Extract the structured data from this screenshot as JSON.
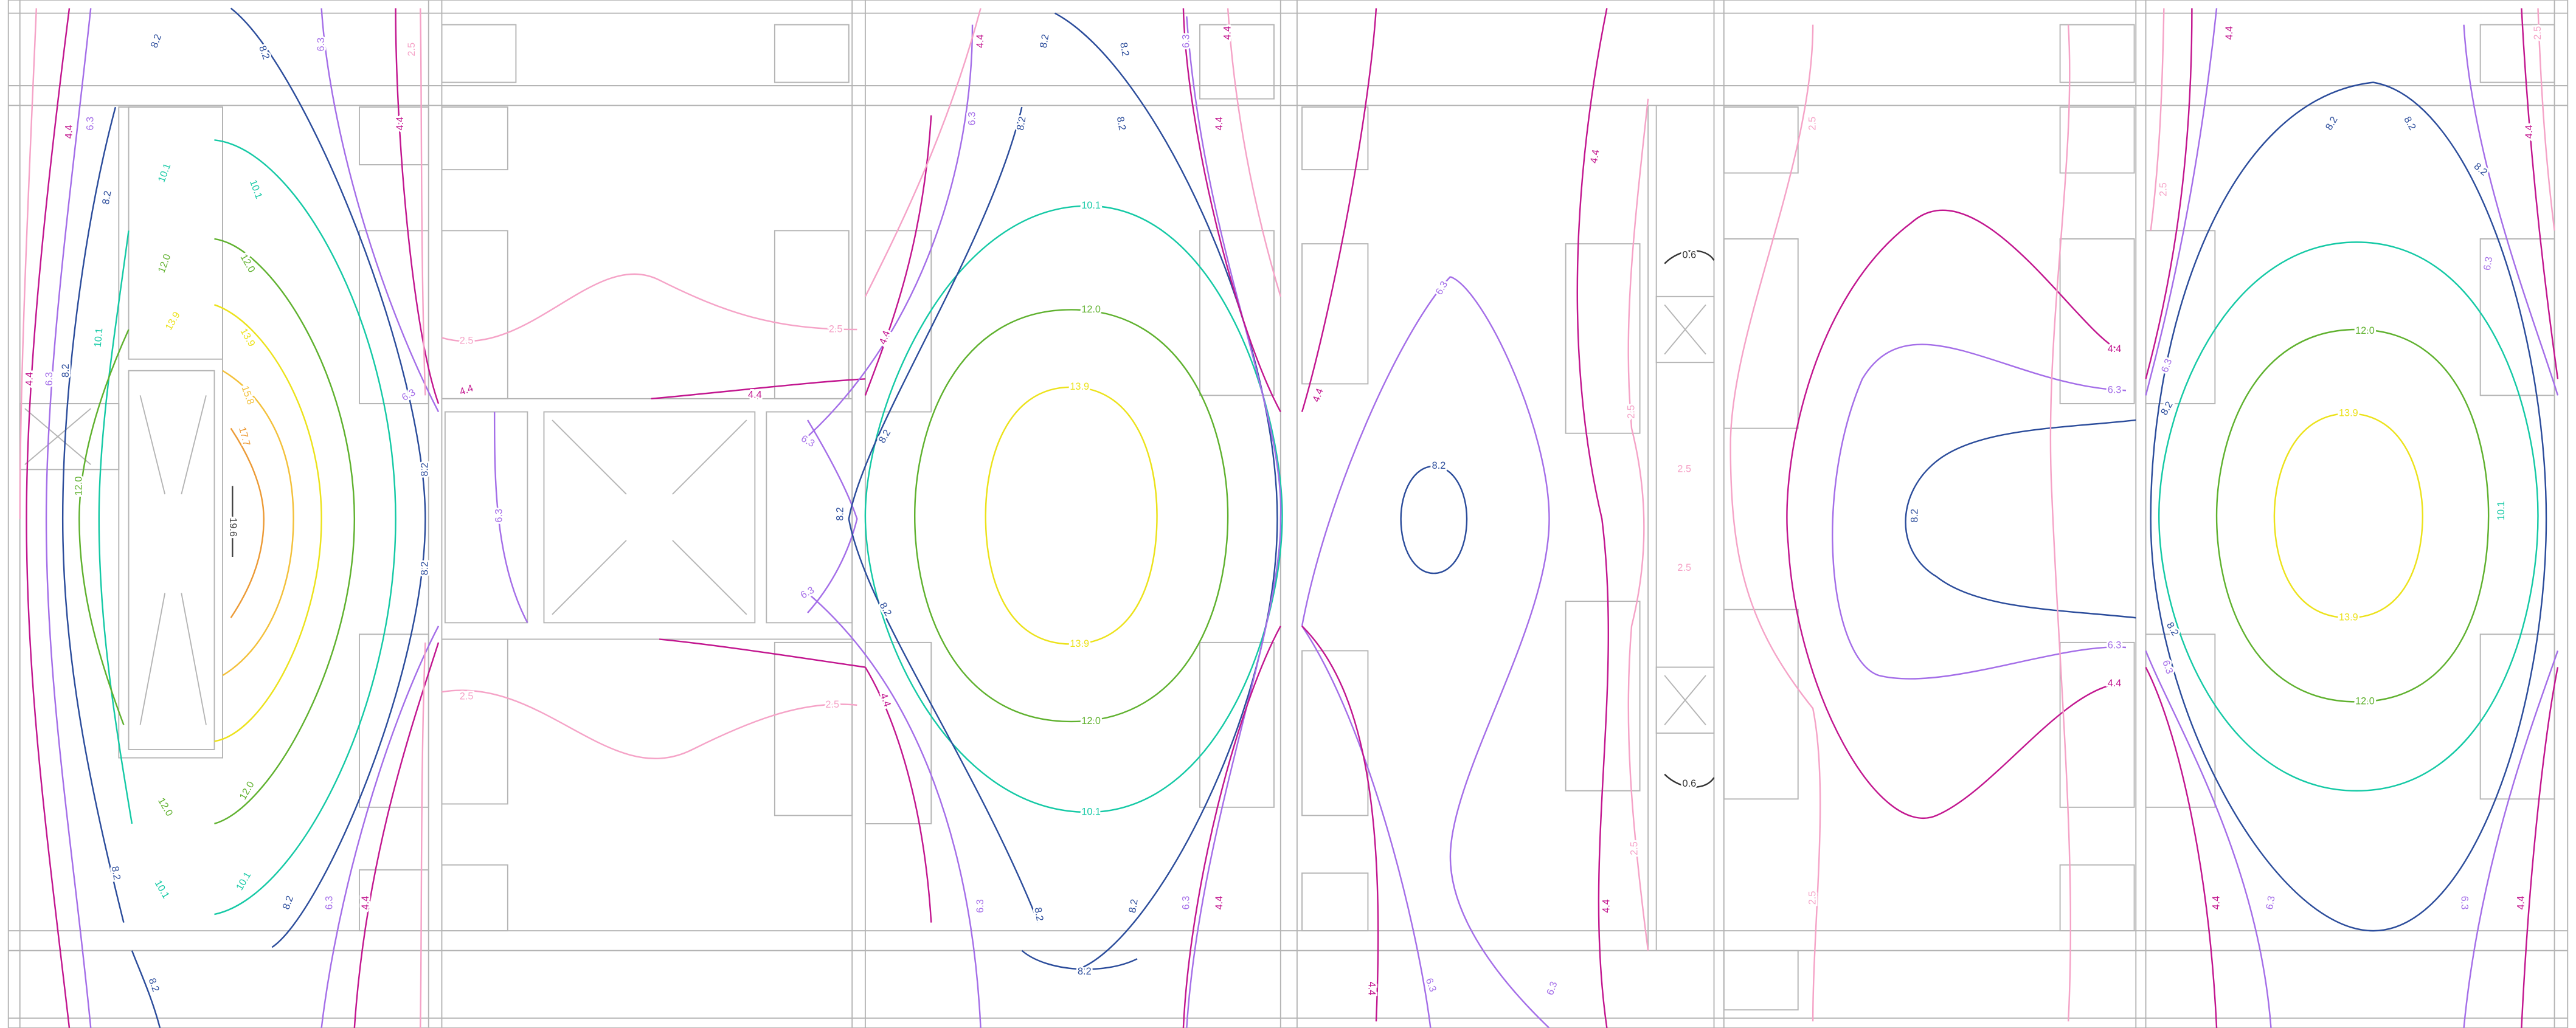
{
  "levels": [
    {
      "label": "0.6",
      "color": "#333333"
    },
    {
      "label": "2.5",
      "color": "#f5a3c7"
    },
    {
      "label": "4.4",
      "color": "#c2168f"
    },
    {
      "label": "6.3",
      "color": "#a46ee8"
    },
    {
      "label": "8.2",
      "color": "#2b4c9b"
    },
    {
      "label": "10.1",
      "color": "#14c9a5"
    },
    {
      "label": "12.0",
      "color": "#5fb12e"
    },
    {
      "label": "13.9",
      "color": "#ece21a"
    },
    {
      "label": "15.8",
      "color": "#f3c03a"
    },
    {
      "label": "17.7",
      "color": "#ec9a35"
    },
    {
      "label": "19.6",
      "color": "#444444"
    }
  ]
}
